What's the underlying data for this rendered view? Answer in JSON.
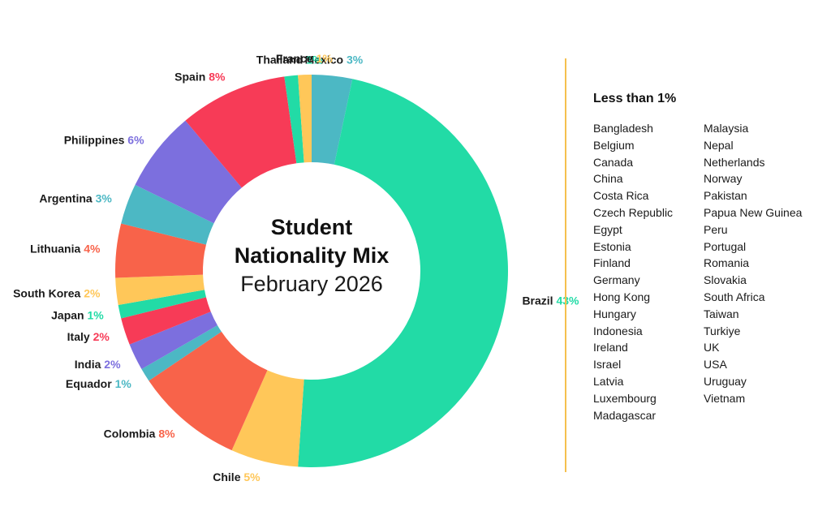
{
  "chart_data": {
    "type": "pie",
    "title": "Student",
    "title_line2": "Nationality Mix",
    "subtitle": "February 2026",
    "donut": true,
    "start": "top",
    "direction": "clockwise",
    "slices": [
      {
        "label": "Mexico",
        "value": 3,
        "value_label": "3%",
        "color": "#4cb8c4"
      },
      {
        "label": "Brazil",
        "value": 43,
        "value_label": "43%",
        "color": "#22dba6"
      },
      {
        "label": "Chile",
        "value": 5,
        "value_label": "5%",
        "color": "#ffc759"
      },
      {
        "label": "Colombia",
        "value": 8,
        "value_label": "8%",
        "color": "#f8634a"
      },
      {
        "label": "Equador",
        "value": 1,
        "value_label": "1%",
        "color": "#4cb8c4"
      },
      {
        "label": "India",
        "value": 2,
        "value_label": "2%",
        "color": "#7c6fde"
      },
      {
        "label": "Italy",
        "value": 2,
        "value_label": "2%",
        "color": "#f73b57"
      },
      {
        "label": "Japan",
        "value": 1,
        "value_label": "1%",
        "color": "#22dba6"
      },
      {
        "label": "South Korea",
        "value": 2,
        "value_label": "2%",
        "color": "#ffc759"
      },
      {
        "label": "Lithuania",
        "value": 4,
        "value_label": "4%",
        "color": "#f8634a"
      },
      {
        "label": "Argentina",
        "value": 3,
        "value_label": "3%",
        "color": "#4cb8c4"
      },
      {
        "label": "Philippines",
        "value": 6,
        "value_label": "6%",
        "color": "#7c6fde"
      },
      {
        "label": "Spain",
        "value": 8,
        "value_label": "8%",
        "color": "#f73b57"
      },
      {
        "label": "Thailand",
        "value": 1,
        "value_label": "1%",
        "color": "#22dba6"
      },
      {
        "label": "France",
        "value": 1,
        "value_label": "1%",
        "color": "#ffc759"
      }
    ],
    "side_list": {
      "title": "Less than 1%",
      "column_1": [
        "Bangladesh",
        "Belgium",
        "Canada",
        "China",
        "Costa Rica",
        "Czech Republic",
        "Egypt",
        "Estonia",
        "Finland",
        "Germany",
        "Hong Kong",
        "Hungary",
        "Indonesia",
        "Ireland",
        "Israel",
        "Latvia",
        "Luxembourg",
        "Madagascar"
      ],
      "column_2": [
        "Malaysia",
        "Nepal",
        "Netherlands",
        "Norway",
        "Pakistan",
        "Papua New Guinea",
        "Peru",
        "Portugal",
        "Romania",
        "Slovakia",
        "South Africa",
        "Taiwan",
        "Turkiye",
        "UK",
        "USA",
        "Uruguay",
        "Vietnam"
      ]
    },
    "colors": {
      "divider": "#f5c04e"
    }
  }
}
